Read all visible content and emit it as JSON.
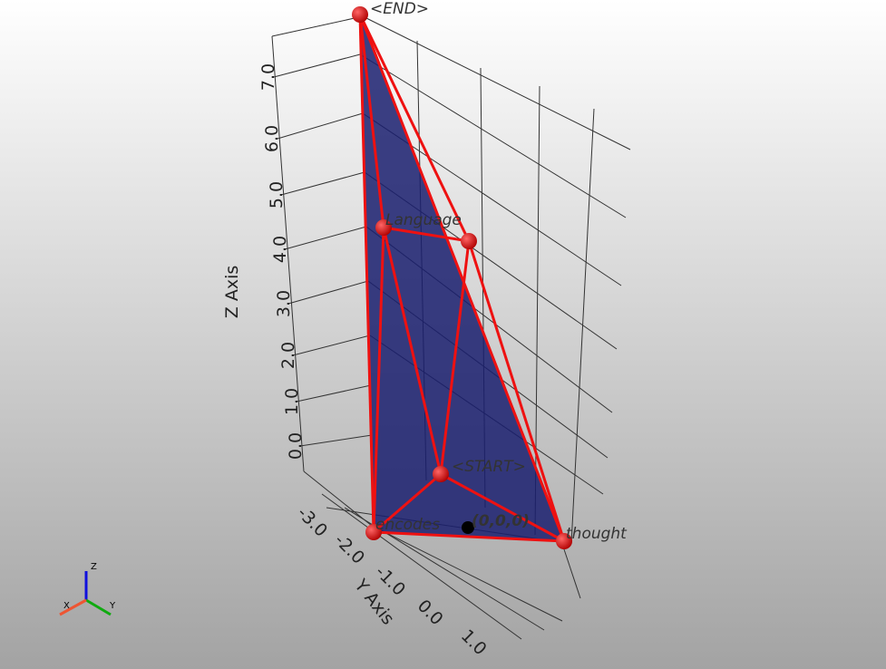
{
  "z_axis": {
    "title": "Z Axis",
    "ticks": [
      "7.0",
      "6.0",
      "5.0",
      "4.0",
      "3.0",
      "2.0",
      "1.0",
      "0.0"
    ]
  },
  "y_axis": {
    "title": "Y Axis",
    "ticks": [
      "-3.0",
      "-2.0",
      "-1.0",
      "0.0",
      "1.0"
    ]
  },
  "nodes": [
    {
      "label": "<END>"
    },
    {
      "label": "Language"
    },
    {
      "label": "<START>"
    },
    {
      "label": "encodes"
    },
    {
      "label": "thought"
    }
  ],
  "origin_label": "(0,0,0)",
  "orientation": {
    "x": "X",
    "y": "Y",
    "z": "Z"
  }
}
